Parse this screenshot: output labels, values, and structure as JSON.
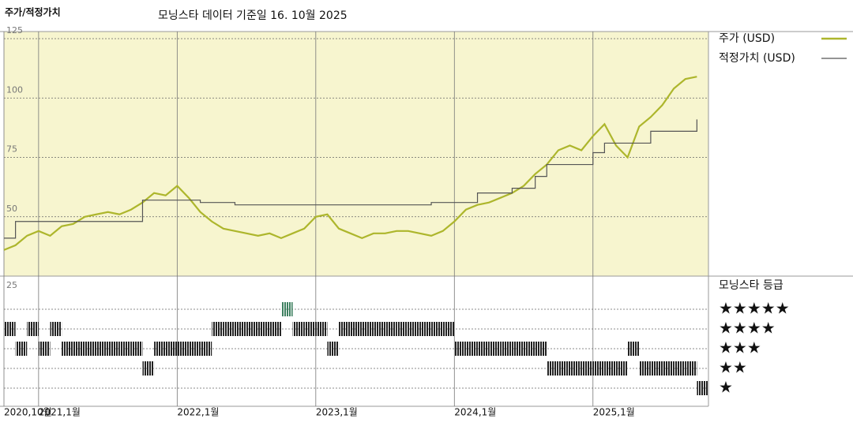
{
  "chart_data": {
    "type": "line",
    "title": "주가/적정가치",
    "subtitle": "모닝스타 데이터 기준일 16. 10월 2025",
    "x": [
      "2020-10",
      "2020-11",
      "2020-12",
      "2021-01",
      "2021-02",
      "2021-03",
      "2021-04",
      "2021-05",
      "2021-06",
      "2021-07",
      "2021-08",
      "2021-09",
      "2021-10",
      "2021-11",
      "2021-12",
      "2022-01",
      "2022-02",
      "2022-03",
      "2022-04",
      "2022-05",
      "2022-06",
      "2022-07",
      "2022-08",
      "2022-09",
      "2022-10",
      "2022-11",
      "2022-12",
      "2023-01",
      "2023-02",
      "2023-03",
      "2023-04",
      "2023-05",
      "2023-06",
      "2023-07",
      "2023-08",
      "2023-09",
      "2023-10",
      "2023-11",
      "2023-12",
      "2024-01",
      "2024-02",
      "2024-03",
      "2024-04",
      "2024-05",
      "2024-06",
      "2024-07",
      "2024-08",
      "2024-09",
      "2024-10",
      "2024-11",
      "2024-12",
      "2025-01",
      "2025-02",
      "2025-03",
      "2025-04",
      "2025-05",
      "2025-06",
      "2025-07",
      "2025-08",
      "2025-09",
      "2025-10"
    ],
    "series": [
      {
        "name": "주가 (USD)",
        "color": "#adb62c",
        "step": false,
        "values": [
          36,
          38,
          42,
          44,
          42,
          46,
          47,
          50,
          51,
          52,
          51,
          53,
          56,
          60,
          59,
          63,
          58,
          52,
          48,
          45,
          44,
          43,
          42,
          43,
          41,
          43,
          45,
          50,
          51,
          45,
          43,
          41,
          43,
          43,
          44,
          44,
          43,
          42,
          44,
          48,
          53,
          55,
          56,
          58,
          60,
          63,
          68,
          72,
          78,
          80,
          78,
          84,
          89,
          80,
          75,
          88,
          92,
          97,
          104,
          108,
          109
        ]
      },
      {
        "name": "적정가치 (USD)",
        "color": "#555555",
        "step": true,
        "values": [
          41,
          48,
          48,
          48,
          48,
          48,
          48,
          48,
          48,
          48,
          48,
          48,
          57,
          57,
          57,
          57,
          57,
          56,
          56,
          56,
          55,
          55,
          55,
          55,
          55,
          55,
          55,
          55,
          55,
          55,
          55,
          55,
          55,
          55,
          55,
          55,
          55,
          56,
          56,
          56,
          56,
          60,
          60,
          60,
          62,
          62,
          67,
          72,
          72,
          72,
          72,
          77,
          81,
          81,
          81,
          81,
          86,
          86,
          86,
          86,
          91
        ]
      }
    ],
    "xlim": [
      "2020-10",
      "2025-11"
    ],
    "xticks": [
      {
        "value": "2020-10",
        "label": "2020,10월"
      },
      {
        "value": "2021-01",
        "label": "2021,1월"
      },
      {
        "value": "2022-01",
        "label": "2022,1월"
      },
      {
        "value": "2023-01",
        "label": "2023,1월"
      },
      {
        "value": "2024-01",
        "label": "2024,1월"
      },
      {
        "value": "2025-01",
        "label": "2025,1월"
      }
    ],
    "ylim": [
      25,
      128
    ],
    "yticks": [
      50,
      75,
      100,
      125
    ],
    "grid": true,
    "background": "#f7f5cf",
    "ratings": {
      "title": "모닝스타 등급",
      "tick": "25",
      "labels": [
        "★★★★★",
        "★★★★",
        "★★★",
        "★★",
        "★"
      ],
      "colors": [
        "#222222",
        "#222222",
        "#222222",
        "#222222",
        "#3e8060"
      ],
      "values": [
        4,
        3,
        4,
        3,
        4,
        3,
        3,
        3,
        3,
        3,
        3,
        3,
        2,
        3,
        3,
        3,
        3,
        3,
        4,
        4,
        4,
        4,
        4,
        4,
        5,
        4,
        4,
        4,
        3,
        4,
        4,
        4,
        4,
        4,
        4,
        4,
        4,
        4,
        4,
        3,
        3,
        3,
        3,
        3,
        3,
        3,
        3,
        2,
        2,
        2,
        2,
        2,
        2,
        2,
        3,
        2,
        2,
        2,
        2,
        2,
        1
      ]
    }
  }
}
